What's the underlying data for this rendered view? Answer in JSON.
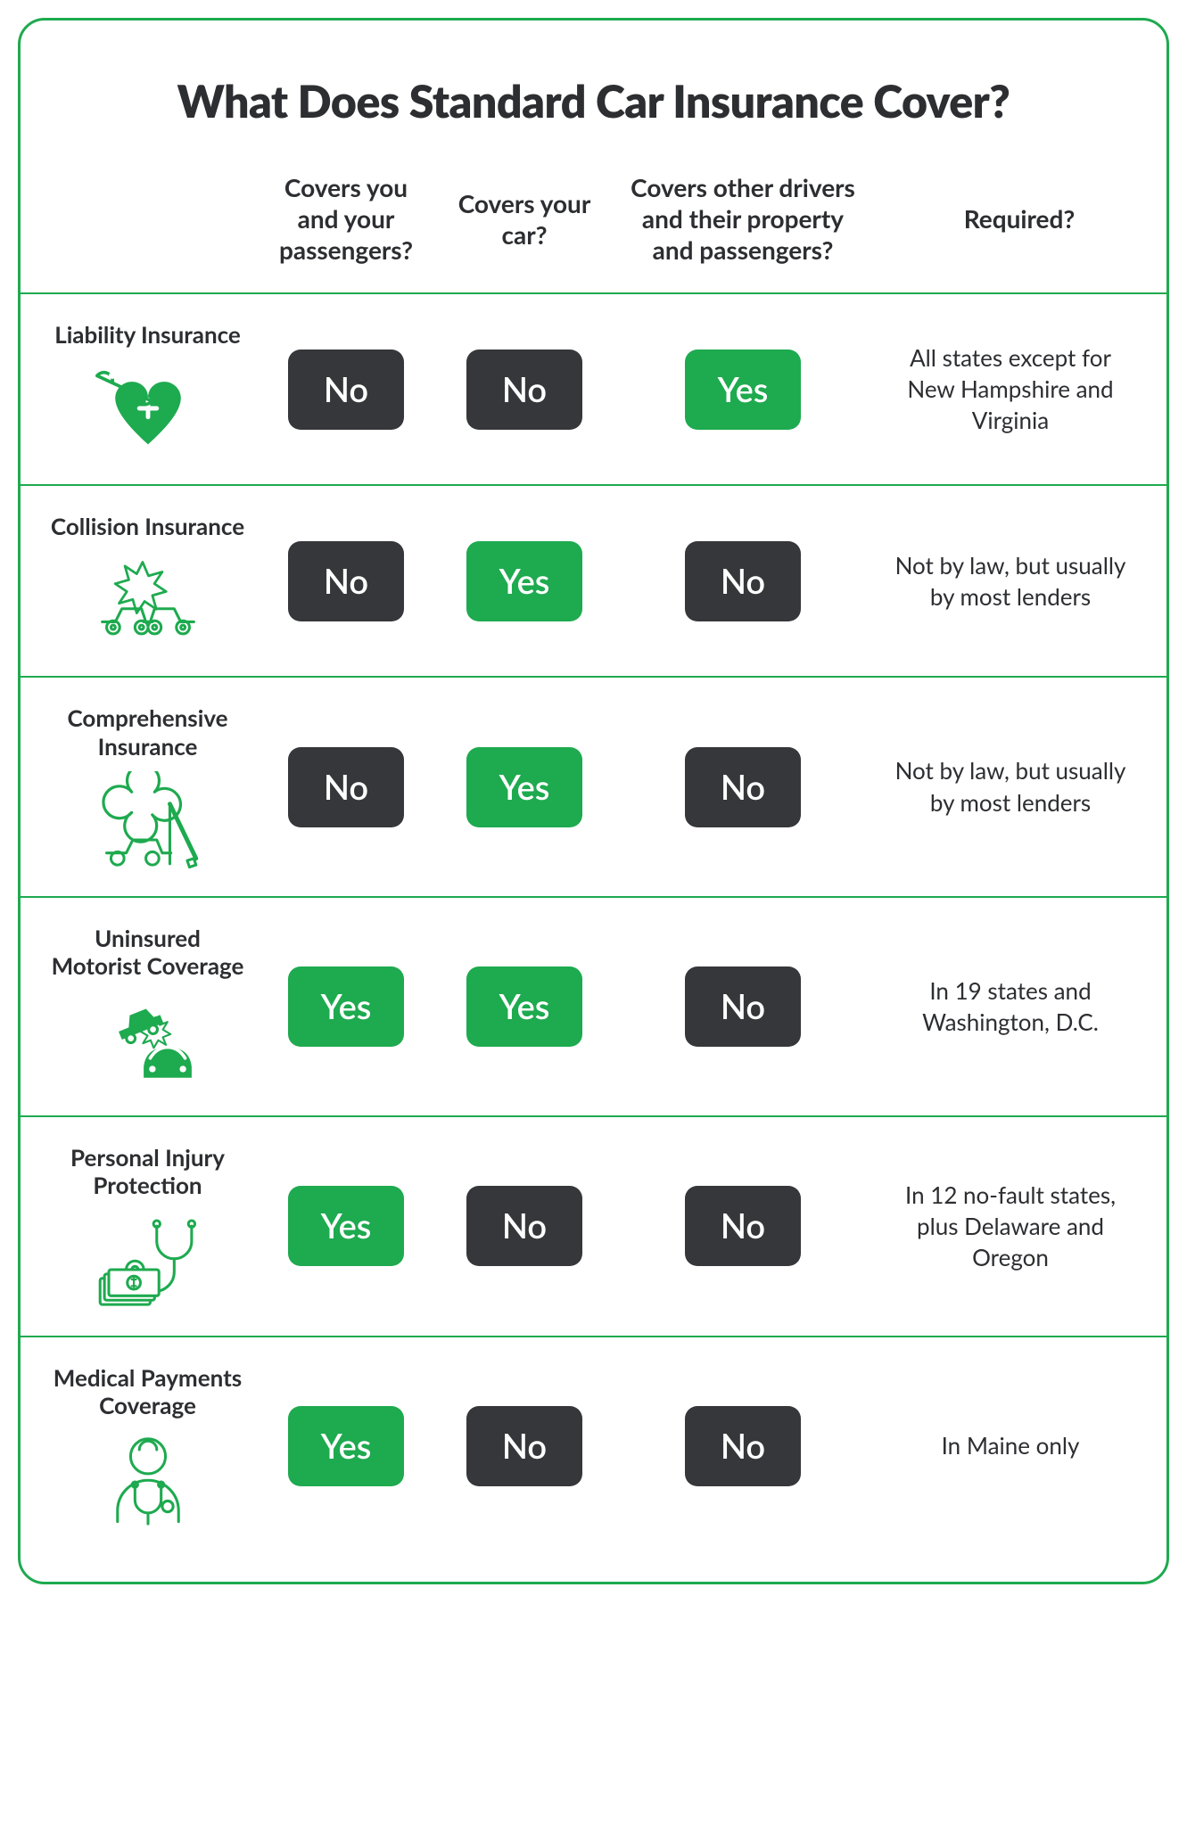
{
  "title": "What Does Standard Car Insurance Cover?",
  "colors": {
    "accent": "#1eaa4f",
    "yes_bg": "#1eaa4f",
    "no_bg": "#36373a",
    "text": "#2d2e31",
    "badge_text": "#ffffff"
  },
  "columns": [
    "Covers you and your passengers?",
    "Covers your car?",
    "Covers other drivers and their property and passengers?",
    "Required?"
  ],
  "yes_label": "Yes",
  "no_label": "No",
  "rows": [
    {
      "label": "Liability Insurance",
      "icon": "heart-wrench-icon",
      "cells": [
        "No",
        "No",
        "Yes"
      ],
      "required": "All states except for New Hampshire and Virginia"
    },
    {
      "label": "Collision Insurance",
      "icon": "collision-icon",
      "cells": [
        "No",
        "Yes",
        "No"
      ],
      "required": "Not by law, but usually by most lenders"
    },
    {
      "label": "Comprehensive Insurance",
      "icon": "tree-on-car-icon",
      "cells": [
        "No",
        "Yes",
        "No"
      ],
      "required": "Not by law, but usually by most lenders"
    },
    {
      "label": "Uninsured Motorist Coverage",
      "icon": "hit-and-run-icon",
      "cells": [
        "Yes",
        "Yes",
        "No"
      ],
      "required": "In 19 states and Washington, D.C."
    },
    {
      "label": "Personal Injury Protection",
      "icon": "stethoscope-money-icon",
      "cells": [
        "Yes",
        "No",
        "No"
      ],
      "required": "In 12 no-fault states, plus Delaware and Oregon"
    },
    {
      "label": "Medical Payments Coverage",
      "icon": "doctor-icon",
      "cells": [
        "Yes",
        "No",
        "No"
      ],
      "required": "In Maine only"
    }
  ]
}
